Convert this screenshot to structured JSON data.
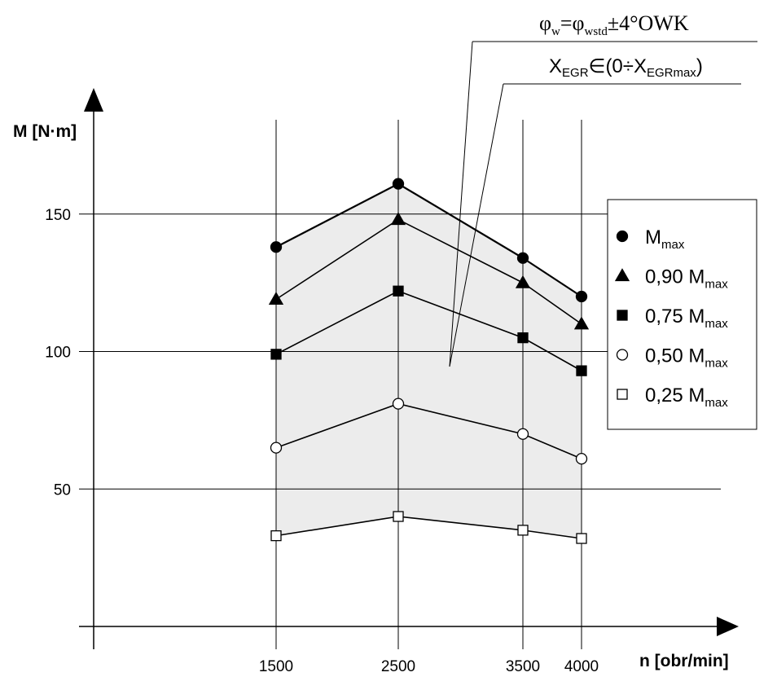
{
  "chart_data": {
    "type": "line",
    "xlabel": "n [obr/min]",
    "ylabel": "M [N·m]",
    "x": [
      1500,
      2500,
      3500,
      4000
    ],
    "x_tick_labels": [
      "1500",
      "2500",
      "3500",
      "4000"
    ],
    "y_ticks": [
      50,
      100,
      150
    ],
    "y_tick_labels": [
      "50",
      "100",
      "150"
    ],
    "grid": true,
    "legend_position": "right",
    "series": [
      {
        "name": "Mmax",
        "name_main": "M",
        "name_sub": "max",
        "name_prefix": "",
        "marker": "filled-circle",
        "values": [
          138,
          161,
          134,
          120
        ]
      },
      {
        "name": "0,90 Mmax",
        "name_main": "M",
        "name_sub": "max",
        "name_prefix": "0,90 ",
        "marker": "filled-triangle",
        "values": [
          119,
          148,
          125,
          110
        ]
      },
      {
        "name": "0,75 Mmax",
        "name_main": "M",
        "name_sub": "max",
        "name_prefix": "0,75 ",
        "marker": "filled-square",
        "values": [
          99,
          122,
          105,
          93
        ]
      },
      {
        "name": "0,50 Mmax",
        "name_main": "M",
        "name_sub": "max",
        "name_prefix": "0,50 ",
        "marker": "open-circle",
        "values": [
          65,
          81,
          70,
          61
        ]
      },
      {
        "name": "0,25 Mmax",
        "name_main": "M",
        "name_sub": "max",
        "name_prefix": "0,25 ",
        "marker": "open-square",
        "values": [
          33,
          40,
          35,
          32
        ]
      }
    ],
    "shaded_region_color": "#ececec",
    "annotations": [
      {
        "text": "φw=φwstd±4°OWK",
        "parts": {
          "phi": "φ",
          "w": "w",
          "eq": "=φ",
          "wstd": "wstd",
          "rest": "±4°OWK"
        }
      },
      {
        "text": "XEGR∈(0÷XEGRmax)",
        "parts": {
          "x1": "X",
          "sub1": "EGR",
          "mid": "∈(0÷X",
          "sub2": "EGRmax",
          "end": ")"
        }
      }
    ]
  }
}
